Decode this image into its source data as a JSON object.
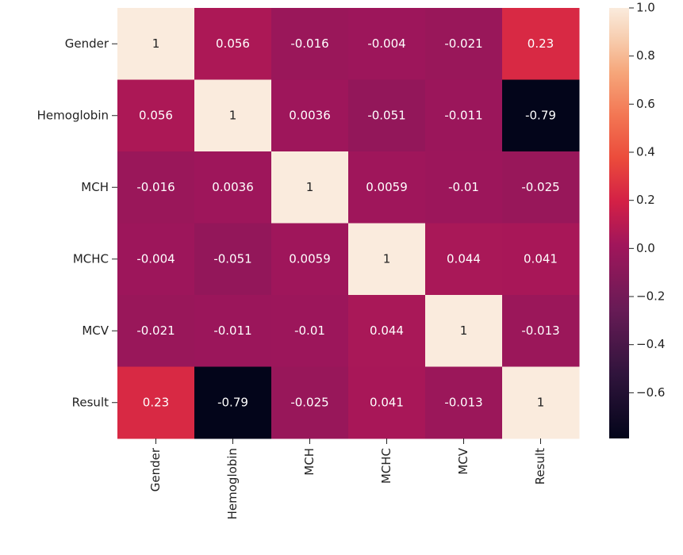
{
  "chart_data": {
    "type": "heatmap",
    "x_categories": [
      "Gender",
      "Hemoglobin",
      "MCH",
      "MCHC",
      "MCV",
      "Result"
    ],
    "y_categories": [
      "Gender",
      "Hemoglobin",
      "MCH",
      "MCHC",
      "MCV",
      "Result"
    ],
    "values": [
      [
        1,
        0.056,
        -0.016,
        -0.004,
        -0.021,
        0.23
      ],
      [
        0.056,
        1,
        0.0036,
        -0.051,
        -0.011,
        -0.79
      ],
      [
        -0.016,
        0.0036,
        1,
        0.0059,
        -0.01,
        -0.025
      ],
      [
        -0.004,
        -0.051,
        0.0059,
        1,
        0.044,
        0.041
      ],
      [
        -0.021,
        -0.011,
        -0.01,
        0.044,
        1,
        -0.013
      ],
      [
        0.23,
        -0.79,
        -0.025,
        0.041,
        -0.013,
        1
      ]
    ],
    "colormap": "rocket",
    "zlim": [
      -0.79,
      1
    ],
    "zticks": [
      {
        "value": 1,
        "label": "1.0"
      },
      {
        "value": 0.8,
        "label": "0.8"
      },
      {
        "value": 0.6,
        "label": "0.6"
      },
      {
        "value": 0.4,
        "label": "0.4"
      },
      {
        "value": 0.2,
        "label": "0.2"
      },
      {
        "value": 0,
        "label": "0.0"
      },
      {
        "value": -0.2,
        "label": "−0.2"
      },
      {
        "value": -0.4,
        "label": "−0.4"
      },
      {
        "value": -0.6,
        "label": "−0.6"
      }
    ]
  }
}
